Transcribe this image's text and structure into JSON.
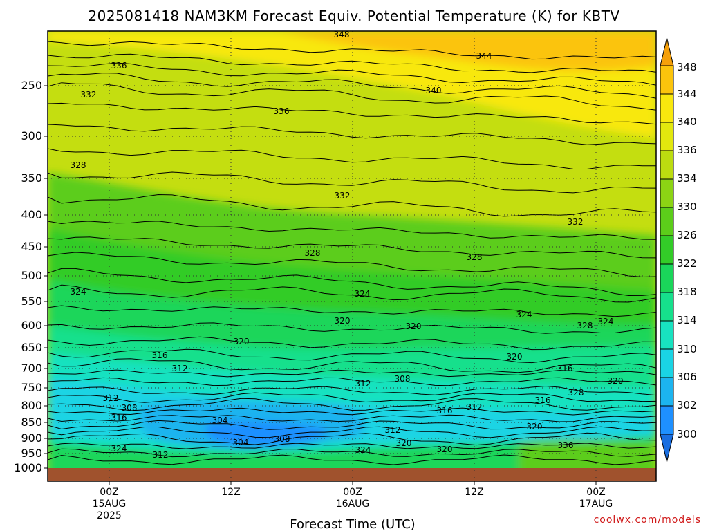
{
  "chart_data": {
    "type": "heatmap",
    "title": "2025081418 NAM3KM Forecast Equiv. Potential Temperature (K) for KBTV",
    "xlabel": "Forecast Time (UTC)",
    "ylabel": "",
    "y_scale": "log-pressure (hPa, inverted)",
    "y_ticks": [
      "250",
      "300",
      "350",
      "400",
      "450",
      "500",
      "550",
      "600",
      "650",
      "700",
      "750",
      "800",
      "850",
      "900",
      "950",
      "1000"
    ],
    "x_ticks": [
      {
        "line1": "00Z",
        "line2": "15AUG",
        "line3": "2025"
      },
      {
        "line1": "12Z",
        "line2": "",
        "line3": ""
      },
      {
        "line1": "00Z",
        "line2": "16AUG",
        "line3": ""
      },
      {
        "line1": "12Z",
        "line2": "",
        "line3": ""
      },
      {
        "line1": "00Z",
        "line2": "17AUG",
        "line3": ""
      }
    ],
    "x_range_hours": [
      -6,
      54
    ],
    "y_range_hpa": [
      200,
      1000
    ],
    "colorbar": {
      "ticks": [
        "348",
        "344",
        "340",
        "336",
        "334",
        "330",
        "326",
        "322",
        "318",
        "314",
        "310",
        "306",
        "302",
        "300"
      ],
      "levels": [
        300,
        302,
        306,
        310,
        314,
        318,
        322,
        326,
        330,
        334,
        336,
        340,
        344,
        348
      ],
      "colors": [
        "#1a6ee0",
        "#1e90ff",
        "#1cb4ef",
        "#1ad4e4",
        "#18e2c0",
        "#16e08c",
        "#1ad65a",
        "#33cc28",
        "#5ccd1a",
        "#8cd414",
        "#bcdc10",
        "#e2e80e",
        "#f8e80e",
        "#fbc40c",
        "#f5a00a"
      ]
    },
    "contour_labels": [
      {
        "text": "348",
        "hour": 0,
        "hpa": 0
      },
      {
        "text": "344",
        "hour": 0,
        "hpa": 0
      },
      {
        "text": "336",
        "hour": 0,
        "hpa": 0
      },
      {
        "text": "340",
        "hour": 0,
        "hpa": 0
      },
      {
        "text": "332",
        "hour": 0,
        "hpa": 0
      },
      {
        "text": "336",
        "hour": 0,
        "hpa": 0
      },
      {
        "text": "328",
        "hour": 0,
        "hpa": 0
      },
      {
        "text": "332",
        "hour": 0,
        "hpa": 0
      },
      {
        "text": "332",
        "hour": 0,
        "hpa": 0
      },
      {
        "text": "328",
        "hour": 0,
        "hpa": 0
      },
      {
        "text": "328",
        "hour": 0,
        "hpa": 0
      },
      {
        "text": "324",
        "hour": 0,
        "hpa": 0
      },
      {
        "text": "324",
        "hour": 0,
        "hpa": 0
      },
      {
        "text": "324",
        "hour": 0,
        "hpa": 0
      },
      {
        "text": "320",
        "hour": 0,
        "hpa": 0
      },
      {
        "text": "320",
        "hour": 0,
        "hpa": 0
      },
      {
        "text": "328",
        "hour": 0,
        "hpa": 0
      },
      {
        "text": "324",
        "hour": 0,
        "hpa": 0
      },
      {
        "text": "320",
        "hour": 0,
        "hpa": 0
      },
      {
        "text": "316",
        "hour": 0,
        "hpa": 0
      },
      {
        "text": "320",
        "hour": 0,
        "hpa": 0
      },
      {
        "text": "312",
        "hour": 0,
        "hpa": 0
      },
      {
        "text": "316",
        "hour": 0,
        "hpa": 0
      },
      {
        "text": "320",
        "hour": 0,
        "hpa": 0
      },
      {
        "text": "312",
        "hour": 0,
        "hpa": 0
      },
      {
        "text": "308",
        "hour": 0,
        "hpa": 0
      },
      {
        "text": "316",
        "hour": 0,
        "hpa": 0
      },
      {
        "text": "328",
        "hour": 0,
        "hpa": 0
      },
      {
        "text": "312",
        "hour": 0,
        "hpa": 0
      },
      {
        "text": "308",
        "hour": 0,
        "hpa": 0
      },
      {
        "text": "316",
        "hour": 0,
        "hpa": 0
      },
      {
        "text": "312",
        "hour": 0,
        "hpa": 0
      },
      {
        "text": "304",
        "hour": 0,
        "hpa": 0
      },
      {
        "text": "316",
        "hour": 0,
        "hpa": 0
      },
      {
        "text": "320",
        "hour": 0,
        "hpa": 0
      },
      {
        "text": "304",
        "hour": 0,
        "hpa": 0
      },
      {
        "text": "308",
        "hour": 0,
        "hpa": 0
      },
      {
        "text": "312",
        "hour": 0,
        "hpa": 0
      },
      {
        "text": "320",
        "hour": 0,
        "hpa": 0
      },
      {
        "text": "336",
        "hour": 0,
        "hpa": 0
      },
      {
        "text": "324",
        "hour": 0,
        "hpa": 0
      },
      {
        "text": "312",
        "hour": 0,
        "hpa": 0
      },
      {
        "text": "324",
        "hour": 0,
        "hpa": 0
      },
      {
        "text": "320",
        "hour": 0,
        "hpa": 0
      }
    ]
  },
  "credit": "coolwx.com/models"
}
